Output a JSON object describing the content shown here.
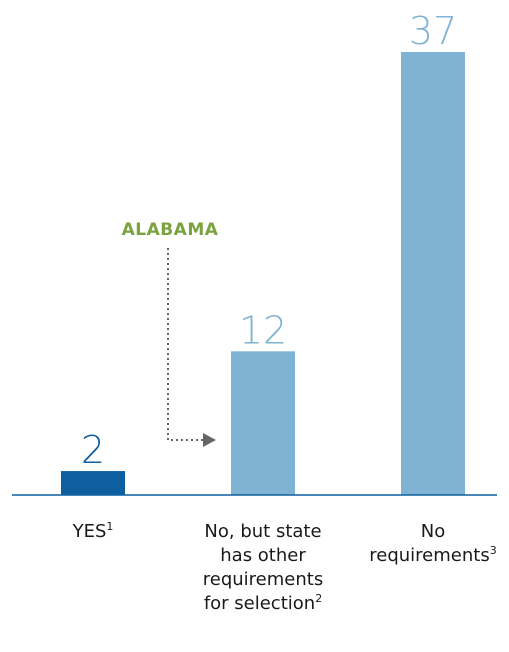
{
  "chart_data": {
    "type": "bar",
    "categories": [
      {
        "lines": [
          "YES"
        ],
        "footnote": "1"
      },
      {
        "lines": [
          "No, but state",
          "has other",
          "requirements",
          "for selection"
        ],
        "footnote": "2"
      },
      {
        "lines": [
          "No",
          "requirements"
        ],
        "footnote": "3"
      }
    ],
    "values": [
      2,
      12,
      37
    ],
    "data_labels": [
      "2",
      "12",
      "37"
    ],
    "ylim": [
      0,
      37
    ],
    "colors": {
      "bars": [
        "#0e5fa0",
        "#7fb2d3",
        "#7fb2d3"
      ],
      "labels": [
        "#0e5fa0",
        "#7fb2d3",
        "#7fb2d3"
      ],
      "axis": "#0e5fa0",
      "annotation": "#7aa33f",
      "arrow": "#666666"
    },
    "annotation": {
      "text": "ALABAMA",
      "points_to_category": 0
    }
  }
}
